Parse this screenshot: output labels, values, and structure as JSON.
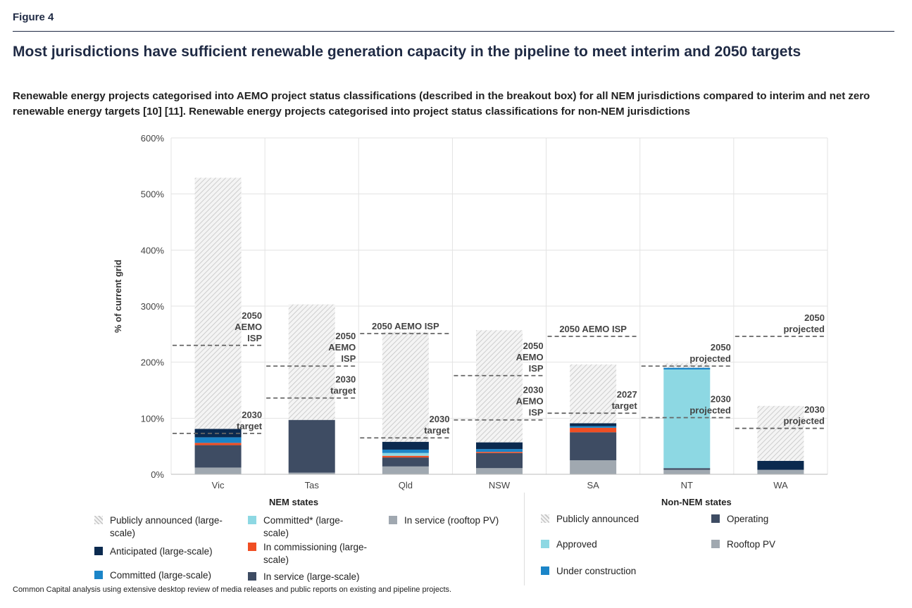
{
  "figure_label": "Figure 4",
  "title": "Most jurisdictions have sufficient renewable generation capacity in the pipeline to meet interim and 2050 targets",
  "subtitle": "Renewable energy projects categorised into AEMO project status classifications (described in the breakout box) for all NEM jurisdictions compared to interim and net zero renewable energy targets [10] [11]. Renewable energy projects categorised into project status classifications for non-NEM jurisdictions",
  "footer": "Common Capital analysis using extensive desktop review of media releases and public reports on existing and pipeline projects.",
  "colors": {
    "publicly_announced": "#d9d9d9",
    "anticipated": "#0b2a4f",
    "committed": "#1b85c8",
    "committed_star": "#8dd8e3",
    "in_commissioning": "#f04e23",
    "in_service_large": "#3e4c63",
    "in_service_rooftop": "#a0a8b0",
    "target_line": "#666666"
  },
  "chart_data": {
    "type": "bar",
    "stacked": true,
    "ylabel": "% of current grid",
    "ylim": [
      0,
      600
    ],
    "yticks": [
      "0%",
      "100%",
      "200%",
      "300%",
      "400%",
      "500%",
      "600%"
    ],
    "categories": [
      "Vic",
      "Tas",
      "Qld",
      "NSW",
      "SA",
      "NT",
      "WA"
    ],
    "series": [
      {
        "key": "in_service_rooftop",
        "values": [
          12,
          3,
          14,
          11,
          25,
          8,
          8
        ]
      },
      {
        "key": "in_service_large",
        "values": [
          40,
          94,
          16,
          27,
          50,
          3,
          0
        ]
      },
      {
        "key": "in_commissioning",
        "values": [
          4,
          0,
          3,
          2,
          8,
          0,
          0
        ]
      },
      {
        "key": "committed_star",
        "values": [
          0,
          0,
          5,
          0,
          0,
          176,
          0
        ]
      },
      {
        "key": "committed",
        "values": [
          10,
          0,
          6,
          5,
          3,
          3,
          0
        ]
      },
      {
        "key": "anticipated",
        "values": [
          15,
          0,
          14,
          12,
          5,
          0,
          16
        ]
      },
      {
        "key": "publicly_announced",
        "values": [
          448,
          206,
          196,
          200,
          105,
          8,
          98
        ]
      }
    ],
    "targets": [
      {
        "category": "Vic",
        "value": 230,
        "label": "2050 AEMO ISP"
      },
      {
        "category": "Vic",
        "value": 73,
        "label": "2030 target"
      },
      {
        "category": "Tas",
        "value": 193,
        "label": "2050 AEMO ISP"
      },
      {
        "category": "Tas",
        "value": 136,
        "label": "2030 target"
      },
      {
        "category": "Qld",
        "value": 251,
        "label": "2050 AEMO ISP"
      },
      {
        "category": "Qld",
        "value": 65,
        "label": "2030 target"
      },
      {
        "category": "NSW",
        "value": 176,
        "label": "2050 AEMO ISP"
      },
      {
        "category": "NSW",
        "value": 97,
        "label": "2030 AEMO ISP"
      },
      {
        "category": "SA",
        "value": 246,
        "label": "2050 AEMO ISP"
      },
      {
        "category": "SA",
        "value": 109,
        "label": "2027 target"
      },
      {
        "category": "NT",
        "value": 193,
        "label": "2050 projected"
      },
      {
        "category": "NT",
        "value": 101,
        "label": "2030 projected"
      },
      {
        "category": "WA",
        "value": 246,
        "label": "2050 projected"
      },
      {
        "category": "WA",
        "value": 82,
        "label": "2030 projected"
      }
    ]
  },
  "legend": {
    "nem": {
      "title": "NEM states",
      "items": [
        {
          "key": "publicly_announced",
          "label": "Publicly announced (large-scale)"
        },
        {
          "key": "committed_star",
          "label": "Committed* (large-scale)"
        },
        {
          "key": "in_service_rooftop",
          "label": "In service (rooftop PV)"
        },
        {
          "key": "anticipated",
          "label": "Anticipated (large-scale)"
        },
        {
          "key": "in_commissioning",
          "label": "In commissioning (large-scale)"
        },
        {
          "key": "committed",
          "label": "Committed (large-scale)"
        },
        {
          "key": "in_service_large",
          "label": "In service (large-scale)"
        }
      ]
    },
    "non_nem": {
      "title": "Non-NEM states",
      "items": [
        {
          "key": "publicly_announced",
          "label": "Publicly announced"
        },
        {
          "key": "in_service_large",
          "label": "Operating"
        },
        {
          "key": "committed_star",
          "label": "Approved"
        },
        {
          "key": "in_service_rooftop",
          "label": "Rooftop PV"
        },
        {
          "key": "committed",
          "label": "Under construction"
        }
      ]
    }
  }
}
